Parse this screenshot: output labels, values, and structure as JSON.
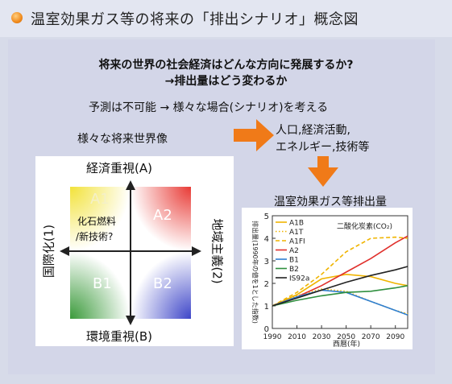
{
  "header": {
    "title": "温室効果ガス等の将来の「排出シナリオ」概念図"
  },
  "intro": {
    "question_line1": "将来の世界の社会経済はどんな方向に発展するか?",
    "question_line2": "→排出量はどう変わるか",
    "unpredictable": "予測は不可能 → 様々な場合(シナリオ)を考える",
    "worlds_label": "様々な将来世界像",
    "factors_line1": "人口,経済活動,",
    "factors_line2": "エネルギー,技術等"
  },
  "quadrant": {
    "axis_top": "経済重視(A)",
    "axis_bottom": "環境重視(B)",
    "axis_left": "国際化(1)",
    "axis_right": "地域主義(2)",
    "a1": "A1",
    "a2": "A2",
    "b1": "B1",
    "b2": "B2",
    "a1_note_line1": "化石燃料",
    "a1_note_line2": "/新技術?",
    "colors": {
      "a1": "#f2e23a",
      "a2": "#e83a35",
      "b1": "#3a9a3a",
      "b2": "#3d45c8"
    }
  },
  "chart_title": "温室効果ガス等排出量",
  "chart_data": {
    "type": "line",
    "title": "",
    "gas_label": "二酸化炭素(CO₂)",
    "ylabel": "排出量(1990年の値を1とした指数)",
    "xlabel": "西暦(年)",
    "xlim": [
      1990,
      2100
    ],
    "ylim": [
      0,
      5
    ],
    "xticks": [
      1990,
      2010,
      2030,
      2050,
      2070,
      2090
    ],
    "yticks": [
      0,
      1,
      2,
      3,
      4,
      5
    ],
    "x": [
      1990,
      2010,
      2030,
      2050,
      2070,
      2090,
      2100
    ],
    "series": [
      {
        "name": "A1B",
        "color": "#f0b400",
        "dash": "solid",
        "values": [
          1.0,
          1.5,
          2.2,
          2.4,
          2.3,
          2.0,
          1.9
        ]
      },
      {
        "name": "A1T",
        "color": "#f0b400",
        "dash": "dotted",
        "values": [
          1.0,
          1.45,
          1.75,
          1.65,
          1.2,
          0.8,
          0.65
        ]
      },
      {
        "name": "A1FI",
        "color": "#f0b400",
        "dash": "dashed",
        "values": [
          1.0,
          1.6,
          2.4,
          3.4,
          4.0,
          4.05,
          4.0
        ]
      },
      {
        "name": "A2",
        "color": "#e0302c",
        "dash": "solid",
        "values": [
          1.0,
          1.4,
          1.9,
          2.5,
          3.1,
          3.8,
          4.1
        ]
      },
      {
        "name": "B1",
        "color": "#2f7fd0",
        "dash": "solid",
        "values": [
          1.0,
          1.4,
          1.7,
          1.6,
          1.2,
          0.8,
          0.6
        ]
      },
      {
        "name": "B2",
        "color": "#2f8f3f",
        "dash": "solid",
        "values": [
          1.0,
          1.25,
          1.45,
          1.6,
          1.65,
          1.8,
          1.9
        ]
      },
      {
        "name": "IS92a",
        "color": "#222222",
        "dash": "solid",
        "values": [
          1.0,
          1.35,
          1.7,
          2.05,
          2.35,
          2.6,
          2.75
        ]
      }
    ]
  }
}
